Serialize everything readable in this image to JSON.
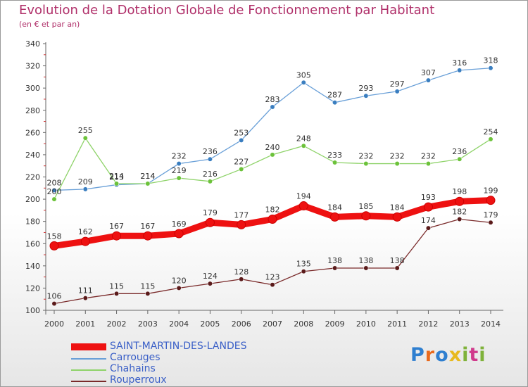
{
  "title": "Evolution de la Dotation Globale de Fonctionnement par Habitant",
  "subtitle": "(en € et par an)",
  "logo": {
    "text": "Proxiti",
    "colors": [
      "#2f7fd0",
      "#e86a1e",
      "#2f7fd0",
      "#e8b91e",
      "#7fb23a",
      "#d03a8c",
      "#7fb23a"
    ]
  },
  "chart_data": {
    "type": "line",
    "x": [
      2000,
      2001,
      2002,
      2003,
      2004,
      2005,
      2006,
      2007,
      2008,
      2009,
      2010,
      2011,
      2012,
      2013,
      2014
    ],
    "ylim": [
      100,
      340
    ],
    "yticks": [
      100,
      120,
      140,
      160,
      180,
      200,
      220,
      240,
      260,
      280,
      300,
      320,
      340
    ],
    "grid": false,
    "legend_position": "bottom-left",
    "series": [
      {
        "name": "Carrouges",
        "color": "#6aa0d8",
        "point_color": "#3a7ec0",
        "values": [
          208,
          209,
          213,
          214,
          232,
          236,
          253,
          283,
          305,
          287,
          293,
          297,
          307,
          316,
          318
        ]
      },
      {
        "name": "Chahains",
        "color": "#8fd36a",
        "point_color": "#6cc23a",
        "values": [
          200,
          255,
          214,
          214,
          219,
          216,
          227,
          240,
          248,
          233,
          232,
          232,
          232,
          236,
          254
        ]
      },
      {
        "name": "Rouperroux",
        "color": "#7a2a2a",
        "point_color": "#5a1a1a",
        "values": [
          106,
          111,
          115,
          115,
          120,
          124,
          128,
          123,
          135,
          138,
          138,
          138,
          174,
          182,
          179
        ]
      },
      {
        "name": "SAINT-MARTIN-DES-LANDES",
        "color": "#ee1111",
        "point_color": "#ee1111",
        "values": [
          158,
          162,
          167,
          167,
          169,
          179,
          177,
          182,
          194,
          184,
          185,
          184,
          193,
          198,
          199
        ]
      }
    ]
  }
}
